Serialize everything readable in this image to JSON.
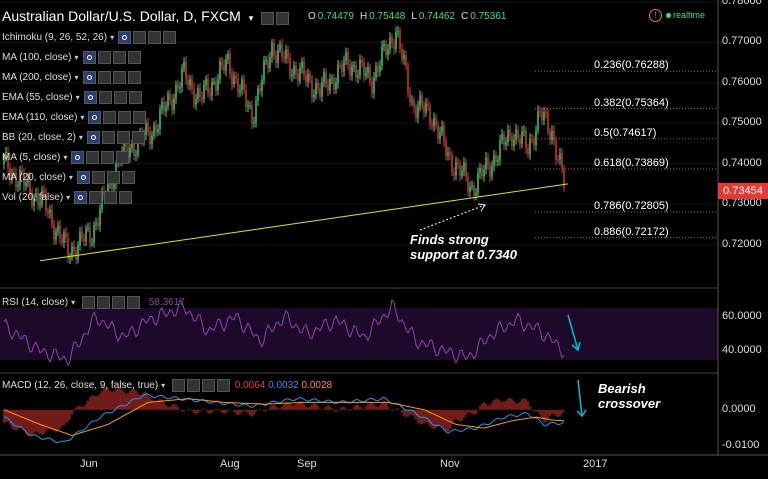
{
  "header": {
    "title": "Australian Dollar/U.S. Dollar, D, FXCM",
    "ohlc": [
      {
        "k": "O",
        "v": "0.74479"
      },
      {
        "k": "H",
        "v": "0.75448"
      },
      {
        "k": "L",
        "v": "0.74462"
      },
      {
        "k": "C",
        "v": "0.75361"
      }
    ],
    "realtime": "realtime"
  },
  "indicators": [
    "Ichimoku (9, 26, 52, 26)",
    "MA (100, close)",
    "MA (200, close)",
    "EMA (55, close)",
    "EMA (110, close)",
    "BB (20, close, 2)",
    "MA (5, close)",
    "MA (20, close)",
    "Vol (20, false)"
  ],
  "rsi": {
    "label": "RSI (14, close)",
    "value": "58.3617"
  },
  "macd": {
    "label": "MACD (12, 26, close, 9, false, true)",
    "v1": "0.0064",
    "v2": "0.0032",
    "v3": "0.0028"
  },
  "annotations": {
    "support_line1": "Finds strong",
    "support_line2": "support at 0.7340",
    "bearish_line1": "Bearish",
    "bearish_line2": "crossover"
  },
  "colors": {
    "up": "#3ddc84",
    "down": "#e53935",
    "trendline": "#e6e600",
    "rsi": "#8e44ad",
    "macd": "#2196f3",
    "signal": "#ff9800",
    "hist": "#e53935",
    "arrow": "#00bcd4"
  },
  "current_price": "0.73454",
  "chart_data": [
    {
      "type": "candlestick",
      "title": "Australian Dollar/U.S. Dollar, D, FXCM",
      "ylim": [
        0.71,
        0.78
      ],
      "yticks": [
        "0.78000",
        "0.77000",
        "0.76000",
        "0.75000",
        "0.74000",
        "0.73000",
        "0.72000"
      ],
      "xticks": [
        "Jun",
        "Aug",
        "Sep",
        "Nov",
        "2017"
      ],
      "keypoints": [
        [
          "0",
          0.74
        ],
        [
          "20",
          0.73
        ],
        [
          "32",
          0.718
        ],
        [
          "44",
          0.723
        ],
        [
          "58",
          0.742
        ],
        [
          "74",
          0.748
        ],
        [
          "90",
          0.762
        ],
        [
          "98",
          0.756
        ],
        [
          "112",
          0.765
        ],
        [
          "124",
          0.752
        ],
        [
          "134",
          0.769
        ],
        [
          "144",
          0.764
        ],
        [
          "158",
          0.758
        ],
        [
          "172",
          0.765
        ],
        [
          "184",
          0.761
        ],
        [
          "196",
          0.773
        ],
        [
          "204",
          0.755
        ],
        [
          "214",
          0.752
        ],
        [
          "222",
          0.742
        ],
        [
          "234",
          0.734
        ],
        [
          "246",
          0.742
        ],
        [
          "254",
          0.748
        ],
        [
          "262",
          0.744
        ],
        [
          "268",
          0.752
        ],
        [
          "274",
          0.748
        ],
        [
          "280",
          0.735
        ]
      ],
      "fib_levels": [
        {
          "label": "0.236(0.76288)",
          "y": 0.76288
        },
        {
          "label": "0.382(0.75364)",
          "y": 0.75364
        },
        {
          "label": "0.5(0.74617)",
          "y": 0.74617
        },
        {
          "label": "0.618(0.73869)",
          "y": 0.73869
        },
        {
          "label": "0.786(0.72805)",
          "y": 0.72805
        },
        {
          "label": "0.886(0.72172)",
          "y": 0.72172
        }
      ],
      "trendline": [
        [
          "18",
          0.716
        ],
        [
          "282",
          0.735
        ]
      ]
    },
    {
      "type": "line",
      "title": "RSI (14, close)",
      "ylim": [
        30,
        70
      ],
      "yticks": [
        "60.0000",
        "40.0000"
      ],
      "keypoints": [
        [
          "0",
          55
        ],
        [
          "18",
          40
        ],
        [
          "32",
          35
        ],
        [
          "46",
          60
        ],
        [
          "60",
          48
        ],
        [
          "72",
          58
        ],
        [
          "90",
          66
        ],
        [
          "102",
          52
        ],
        [
          "116",
          60
        ],
        [
          "128",
          46
        ],
        [
          "140",
          60
        ],
        [
          "152",
          50
        ],
        [
          "166",
          58
        ],
        [
          "180",
          48
        ],
        [
          "194",
          66
        ],
        [
          "206",
          46
        ],
        [
          "220",
          40
        ],
        [
          "232",
          36
        ],
        [
          "244",
          50
        ],
        [
          "256",
          58
        ],
        [
          "268",
          52
        ],
        [
          "280",
          40
        ]
      ]
    },
    {
      "type": "line",
      "title": "MACD (12, 26, close, 9, false, true)",
      "ylim": [
        -0.0115,
        0.007
      ],
      "yticks": [
        "0.0000",
        "-0.0100"
      ],
      "series": [
        {
          "name": "MACD",
          "keypoints": [
            [
              "0",
              -0.002
            ],
            [
              "14",
              -0.007
            ],
            [
              "30",
              -0.009
            ],
            [
              "48",
              -0.002
            ],
            [
              "70",
              0.004
            ],
            [
              "88",
              0.003
            ],
            [
              "106",
              0.002
            ],
            [
              "124",
              0.001
            ],
            [
              "146",
              0.003
            ],
            [
              "168",
              0.002
            ],
            [
              "190",
              0.003
            ],
            [
              "206",
              -0.001
            ],
            [
              "222",
              -0.006
            ],
            [
              "236",
              -0.005
            ],
            [
              "250",
              -0.002
            ],
            [
              "262",
              -0.001
            ],
            [
              "270",
              -0.004
            ],
            [
              "280",
              -0.0035
            ]
          ]
        },
        {
          "name": "Signal",
          "keypoints": [
            [
              "0",
              0.0
            ],
            [
              "18",
              -0.004
            ],
            [
              "34",
              -0.007
            ],
            [
              "52",
              -0.004
            ],
            [
              "72",
              0.002
            ],
            [
              "92",
              0.003
            ],
            [
              "110",
              0.002
            ],
            [
              "130",
              0.0015
            ],
            [
              "150",
              0.002
            ],
            [
              "170",
              0.002
            ],
            [
              "192",
              0.002
            ],
            [
              "210",
              0.0
            ],
            [
              "226",
              -0.004
            ],
            [
              "240",
              -0.005
            ],
            [
              "254",
              -0.003
            ],
            [
              "266",
              -0.002
            ],
            [
              "274",
              -0.0028
            ],
            [
              "280",
              -0.003
            ]
          ]
        }
      ]
    }
  ]
}
